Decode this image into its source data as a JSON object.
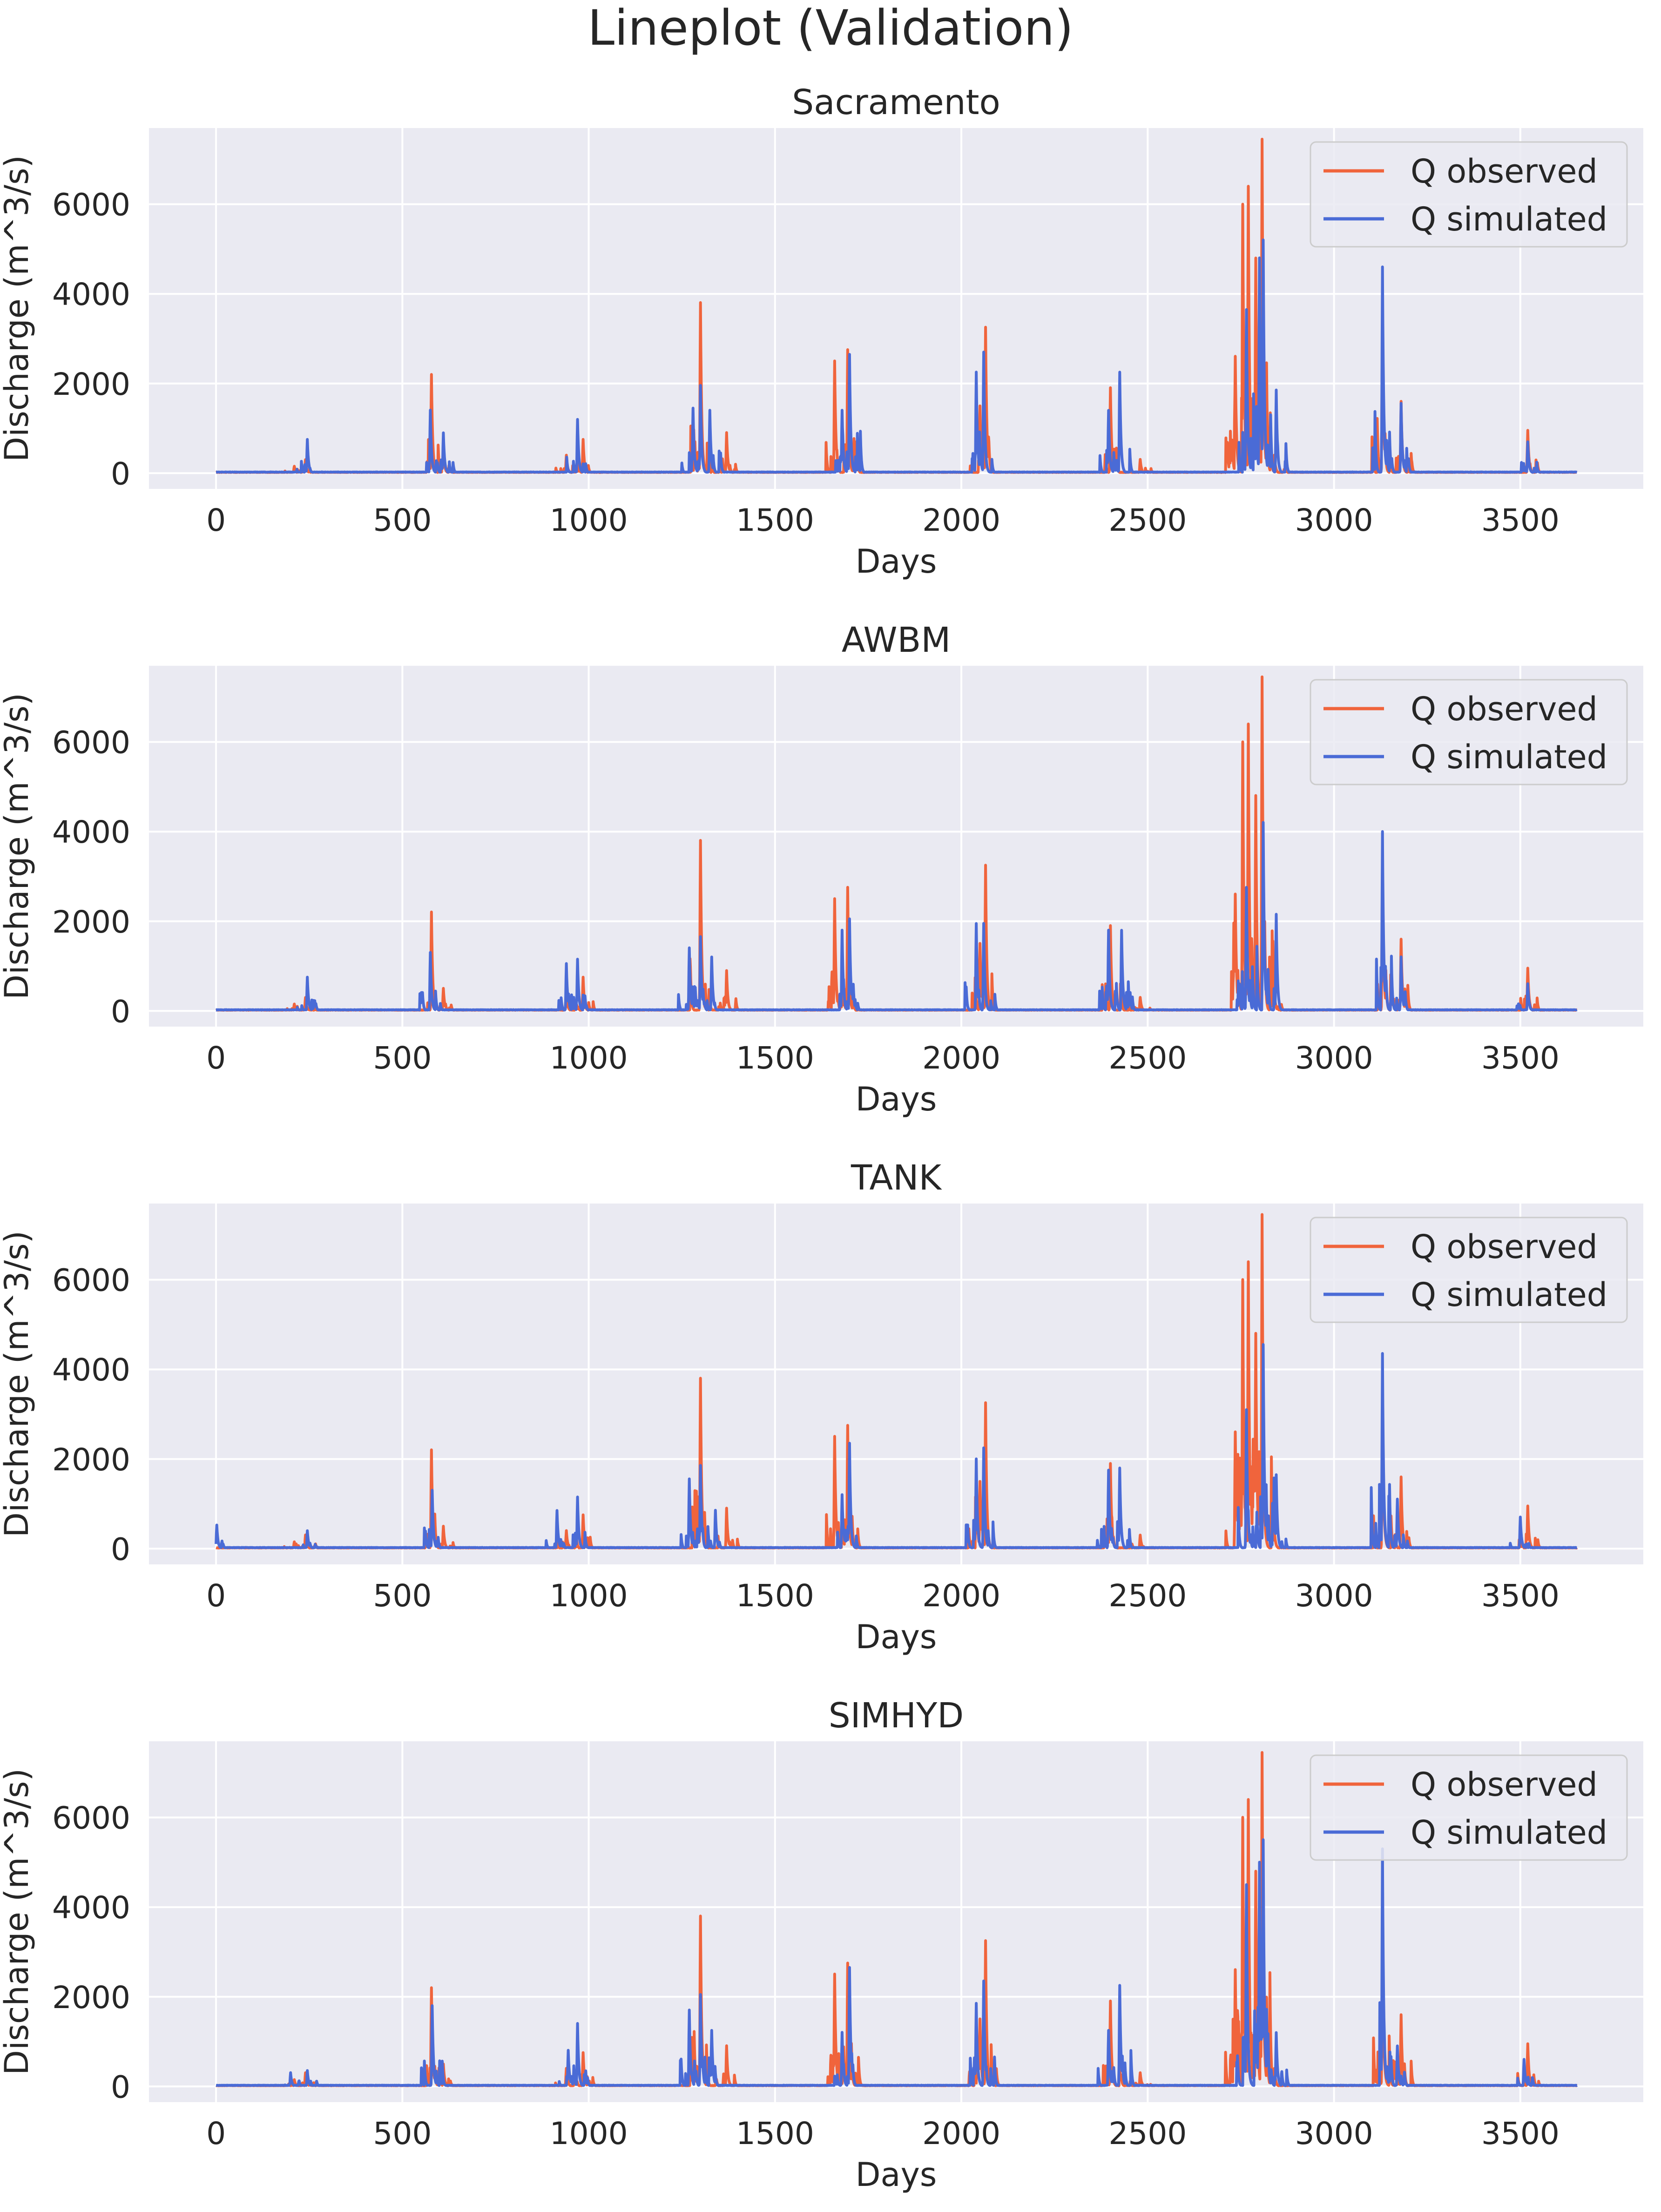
{
  "figure_title": "Lineplot (Validation)",
  "colors": {
    "observed": "#f0643c",
    "simulated": "#4a6bd6",
    "panel_bg": "#eaeaf2",
    "grid": "#ffffff"
  },
  "chart_data": [
    {
      "type": "line",
      "title": "Sacramento",
      "xlabel": "Days",
      "ylabel": "Discharge (m^3/s)",
      "xlim": [
        -180,
        3830
      ],
      "ylim": [
        -350,
        7700
      ],
      "xticks": [
        0,
        500,
        1000,
        1500,
        2000,
        2500,
        3000,
        3500
      ],
      "yticks": [
        0,
        2000,
        4000,
        6000
      ],
      "legend": "upper right",
      "grid": true,
      "x_range": [
        0,
        3652
      ],
      "series": [
        {
          "name": "Q observed",
          "peaks": [
            [
              210,
              150
            ],
            [
              240,
              300
            ],
            [
              578,
              2200
            ],
            [
              610,
              500
            ],
            [
              940,
              400
            ],
            [
              985,
              750
            ],
            [
              1300,
              3800
            ],
            [
              1370,
              900
            ],
            [
              1660,
              2500
            ],
            [
              1695,
              2750
            ],
            [
              2050,
              1500
            ],
            [
              2065,
              3250
            ],
            [
              2400,
              1900
            ],
            [
              2480,
              300
            ],
            [
              2735,
              2600
            ],
            [
              2755,
              6000
            ],
            [
              2770,
              6400
            ],
            [
              2790,
              4800
            ],
            [
              2807,
              7450
            ],
            [
              2840,
              400
            ],
            [
              3130,
              3400
            ],
            [
              3180,
              1600
            ],
            [
              3520,
              950
            ]
          ]
        },
        {
          "name": "Q simulated",
          "peaks": [
            [
              245,
              750
            ],
            [
              575,
              1400
            ],
            [
              610,
              900
            ],
            [
              970,
              1200
            ],
            [
              1280,
              1450
            ],
            [
              1300,
              1950
            ],
            [
              1325,
              1400
            ],
            [
              1680,
              1400
            ],
            [
              1700,
              2650
            ],
            [
              2040,
              2250
            ],
            [
              2060,
              2700
            ],
            [
              2395,
              1400
            ],
            [
              2425,
              2250
            ],
            [
              2765,
              3650
            ],
            [
              2800,
              4800
            ],
            [
              2810,
              5200
            ],
            [
              2845,
              1850
            ],
            [
              3130,
              4600
            ],
            [
              3180,
              1550
            ],
            [
              3520,
              700
            ]
          ]
        }
      ]
    },
    {
      "type": "line",
      "title": "AWBM",
      "xlabel": "Days",
      "ylabel": "Discharge (m^3/s)",
      "xlim": [
        -180,
        3830
      ],
      "ylim": [
        -350,
        7700
      ],
      "xticks": [
        0,
        500,
        1000,
        1500,
        2000,
        2500,
        3000,
        3500
      ],
      "yticks": [
        0,
        2000,
        4000,
        6000
      ],
      "legend": "upper right",
      "grid": true,
      "x_range": [
        0,
        3652
      ],
      "series": [
        {
          "name": "Q observed",
          "peaks": [
            [
              210,
              150
            ],
            [
              240,
              300
            ],
            [
              578,
              2200
            ],
            [
              610,
              500
            ],
            [
              940,
              400
            ],
            [
              985,
              750
            ],
            [
              1300,
              3800
            ],
            [
              1370,
              900
            ],
            [
              1660,
              2500
            ],
            [
              1695,
              2750
            ],
            [
              2050,
              1500
            ],
            [
              2065,
              3250
            ],
            [
              2400,
              1900
            ],
            [
              2480,
              300
            ],
            [
              2735,
              2600
            ],
            [
              2755,
              6000
            ],
            [
              2770,
              6400
            ],
            [
              2790,
              4800
            ],
            [
              2807,
              7450
            ],
            [
              2840,
              400
            ],
            [
              3130,
              3400
            ],
            [
              3180,
              1600
            ],
            [
              3520,
              950
            ]
          ]
        },
        {
          "name": "Q simulated",
          "peaks": [
            [
              245,
              750
            ],
            [
              575,
              1300
            ],
            [
              940,
              1050
            ],
            [
              970,
              1150
            ],
            [
              1270,
              1400
            ],
            [
              1300,
              1650
            ],
            [
              1330,
              1200
            ],
            [
              1680,
              1800
            ],
            [
              1700,
              2050
            ],
            [
              2040,
              1950
            ],
            [
              2060,
              1950
            ],
            [
              2395,
              1800
            ],
            [
              2430,
              1800
            ],
            [
              2765,
              2750
            ],
            [
              2810,
              4200
            ],
            [
              2845,
              2150
            ],
            [
              3130,
              4000
            ],
            [
              3180,
              1200
            ],
            [
              3520,
              600
            ]
          ]
        }
      ]
    },
    {
      "type": "line",
      "title": "TANK",
      "xlabel": "Days",
      "ylabel": "Discharge (m^3/s)",
      "xlim": [
        -180,
        3830
      ],
      "ylim": [
        -350,
        7700
      ],
      "xticks": [
        0,
        500,
        1000,
        1500,
        2000,
        2500,
        3000,
        3500
      ],
      "yticks": [
        0,
        2000,
        4000,
        6000
      ],
      "legend": "upper right",
      "grid": true,
      "x_range": [
        0,
        3652
      ],
      "series": [
        {
          "name": "Q observed",
          "peaks": [
            [
              210,
              150
            ],
            [
              240,
              300
            ],
            [
              578,
              2200
            ],
            [
              610,
              500
            ],
            [
              940,
              400
            ],
            [
              985,
              750
            ],
            [
              1300,
              3800
            ],
            [
              1370,
              900
            ],
            [
              1660,
              2500
            ],
            [
              1695,
              2750
            ],
            [
              2050,
              1500
            ],
            [
              2065,
              3250
            ],
            [
              2400,
              1900
            ],
            [
              2480,
              300
            ],
            [
              2735,
              2600
            ],
            [
              2755,
              6000
            ],
            [
              2770,
              6400
            ],
            [
              2790,
              4800
            ],
            [
              2807,
              7450
            ],
            [
              2840,
              400
            ],
            [
              3130,
              3400
            ],
            [
              3180,
              1600
            ],
            [
              3520,
              950
            ]
          ]
        },
        {
          "name": "Q simulated",
          "peaks": [
            [
              2,
              520
            ],
            [
              245,
              400
            ],
            [
              580,
              1300
            ],
            [
              915,
              850
            ],
            [
              970,
              1150
            ],
            [
              1270,
              1550
            ],
            [
              1300,
              1850
            ],
            [
              1340,
              850
            ],
            [
              1680,
              1200
            ],
            [
              1700,
              2350
            ],
            [
              2040,
              2000
            ],
            [
              2060,
              2250
            ],
            [
              2395,
              1750
            ],
            [
              2425,
              1800
            ],
            [
              2765,
              3100
            ],
            [
              2810,
              4550
            ],
            [
              2845,
              1650
            ],
            [
              3130,
              4350
            ],
            [
              3170,
              1100
            ],
            [
              3500,
              700
            ]
          ]
        }
      ]
    },
    {
      "type": "line",
      "title": "SIMHYD",
      "xlabel": "Days",
      "ylabel": "Discharge (m^3/s)",
      "xlim": [
        -180,
        3830
      ],
      "ylim": [
        -350,
        7700
      ],
      "xticks": [
        0,
        500,
        1000,
        1500,
        2000,
        2500,
        3000,
        3500
      ],
      "yticks": [
        0,
        2000,
        4000,
        6000
      ],
      "legend": "upper right",
      "grid": true,
      "x_range": [
        0,
        3652
      ],
      "series": [
        {
          "name": "Q observed",
          "peaks": [
            [
              210,
              150
            ],
            [
              240,
              300
            ],
            [
              578,
              2200
            ],
            [
              610,
              500
            ],
            [
              940,
              400
            ],
            [
              985,
              750
            ],
            [
              1300,
              3800
            ],
            [
              1370,
              900
            ],
            [
              1660,
              2500
            ],
            [
              1695,
              2750
            ],
            [
              2050,
              1500
            ],
            [
              2065,
              3250
            ],
            [
              2400,
              1900
            ],
            [
              2480,
              300
            ],
            [
              2735,
              2600
            ],
            [
              2755,
              6000
            ],
            [
              2770,
              6400
            ],
            [
              2790,
              4800
            ],
            [
              2807,
              7450
            ],
            [
              2840,
              400
            ],
            [
              3130,
              3400
            ],
            [
              3180,
              1600
            ],
            [
              3520,
              950
            ]
          ]
        },
        {
          "name": "Q simulated",
          "peaks": [
            [
              200,
              300
            ],
            [
              245,
              350
            ],
            [
              580,
              1800
            ],
            [
              945,
              800
            ],
            [
              970,
              1400
            ],
            [
              1270,
              1700
            ],
            [
              1300,
              2050
            ],
            [
              1330,
              1250
            ],
            [
              1680,
              1200
            ],
            [
              1700,
              2650
            ],
            [
              2040,
              1850
            ],
            [
              2060,
              2350
            ],
            [
              2395,
              1250
            ],
            [
              2425,
              2250
            ],
            [
              2765,
              4500
            ],
            [
              2800,
              5000
            ],
            [
              2810,
              5500
            ],
            [
              2845,
              1200
            ],
            [
              3130,
              5300
            ],
            [
              3170,
              900
            ],
            [
              3510,
              600
            ]
          ]
        }
      ]
    }
  ]
}
